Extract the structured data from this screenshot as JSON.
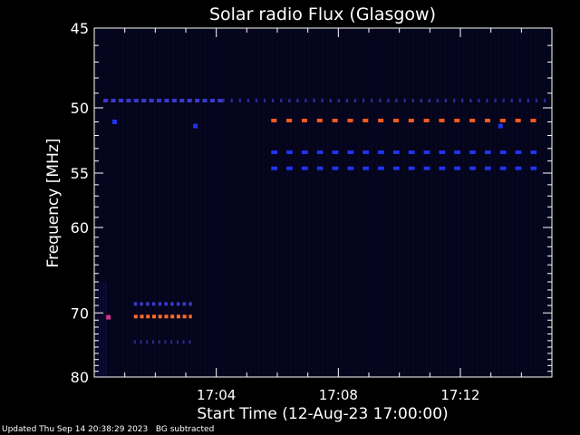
{
  "chart_data": {
    "type": "heatmap",
    "title": "Solar radio Flux (Glasgow)",
    "xlabel": "Start Time (12-Aug-23 17:00:00)",
    "ylabel": "Frequency [MHz]",
    "x_range_minutes": [
      0,
      15
    ],
    "xticks": [
      {
        "minute": 4,
        "label": "17:04"
      },
      {
        "minute": 8,
        "label": "17:08"
      },
      {
        "minute": 12,
        "label": "17:12"
      }
    ],
    "y_scale": "reciprocal",
    "ylim": [
      45,
      80
    ],
    "ytick_labels": [
      45,
      50,
      55,
      60,
      70,
      80
    ],
    "y_minor_ticks": [
      46,
      47,
      48,
      49,
      51,
      52,
      53,
      54,
      56,
      57,
      58,
      59,
      61,
      62,
      63,
      64,
      65,
      66,
      67,
      68,
      69,
      71,
      72,
      73,
      74,
      75,
      76,
      77,
      78,
      79
    ],
    "bursts": [
      {
        "freq": 49.5,
        "t_start": 0.3,
        "t_end": 4.2,
        "dash": 0.15,
        "gap": 0.1,
        "color": "#3a3acc"
      },
      {
        "freq": 49.5,
        "t_start": 4.2,
        "t_end": 14.8,
        "dash": 0.07,
        "gap": 0.2,
        "color": "#2a2a99"
      },
      {
        "freq": 50.9,
        "t_start": 5.8,
        "t_end": 14.8,
        "dash": 0.18,
        "gap": 0.32,
        "color": "#ff5a1e"
      },
      {
        "freq": 53.3,
        "t_start": 5.8,
        "t_end": 14.8,
        "dash": 0.2,
        "gap": 0.3,
        "color": "#2233ee"
      },
      {
        "freq": 54.6,
        "t_start": 5.8,
        "t_end": 14.8,
        "dash": 0.2,
        "gap": 0.3,
        "color": "#2233ee"
      },
      {
        "freq": 68.8,
        "t_start": 1.3,
        "t_end": 3.2,
        "dash": 0.1,
        "gap": 0.1,
        "color": "#3a3acc"
      },
      {
        "freq": 70.5,
        "t_start": 1.3,
        "t_end": 3.2,
        "dash": 0.12,
        "gap": 0.08,
        "color": "#ff6a2a"
      },
      {
        "freq": 74.2,
        "t_start": 1.3,
        "t_end": 3.2,
        "dash": 0.06,
        "gap": 0.14,
        "color": "#2a2a88"
      }
    ],
    "spots": [
      {
        "freq": 70.6,
        "t": 0.45,
        "color": "#cc3388"
      },
      {
        "freq": 51.0,
        "t": 0.65,
        "color": "#2233ee"
      },
      {
        "freq": 51.3,
        "t": 3.3,
        "color": "#2233ee"
      },
      {
        "freq": 51.3,
        "t": 13.3,
        "color": "#2233ee"
      }
    ],
    "colors": {
      "background": "#000000",
      "plot_background": "#04041a",
      "axes": "#ffffff"
    }
  },
  "footer": {
    "updated": "Updated Thu Sep 14 20:38:29 2023",
    "note": "BG subtracted"
  }
}
